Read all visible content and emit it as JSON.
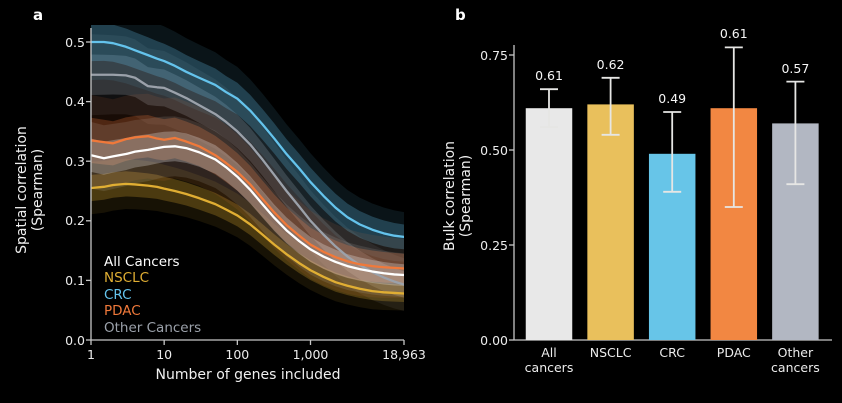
{
  "panels": {
    "a": {
      "letter": "a"
    },
    "b": {
      "letter": "b"
    }
  },
  "colors": {
    "background": "#000000",
    "axis": "#c6c6c6",
    "text": "#ececec"
  },
  "chart_data": [
    {
      "id": "spatial-correlation",
      "type": "line",
      "panel": "a",
      "xlabel": "Number of genes included",
      "ylabel": "Spatial correlation\n(Spearman)",
      "xscale": "log",
      "xlim": [
        1,
        18963
      ],
      "ylim": [
        0.0,
        0.52
      ],
      "grid": false,
      "legend_position": "lower left",
      "yticks": [
        "0.0",
        "0.1",
        "0.2",
        "0.3",
        "0.4",
        "0.5"
      ],
      "ytick_values": [
        0.0,
        0.1,
        0.2,
        0.3,
        0.4,
        0.5
      ],
      "xticks": [
        1,
        10,
        100,
        1000,
        18963
      ],
      "xtick_labels": [
        "1",
        "10",
        "100",
        "1,000",
        "18,963"
      ],
      "x": [
        1,
        1.5,
        2,
        3,
        4,
        6,
        8,
        10,
        14,
        20,
        30,
        50,
        70,
        100,
        150,
        220,
        320,
        470,
        700,
        1000,
        1500,
        2200,
        3200,
        4700,
        7000,
        10000,
        14000,
        18963
      ],
      "series": [
        {
          "key": "all-cancers",
          "name": "All Cancers",
          "color": "#ffffff",
          "band_offset": 0.028,
          "values": [
            0.31,
            0.305,
            0.308,
            0.312,
            0.316,
            0.319,
            0.322,
            0.324,
            0.325,
            0.322,
            0.315,
            0.303,
            0.29,
            0.274,
            0.252,
            0.228,
            0.205,
            0.184,
            0.166,
            0.152,
            0.14,
            0.131,
            0.124,
            0.119,
            0.115,
            0.112,
            0.11,
            0.109
          ]
        },
        {
          "key": "nsclc",
          "name": "NSCLC",
          "color": "#e0ae33",
          "band_offset": 0.022,
          "values": [
            0.255,
            0.257,
            0.26,
            0.262,
            0.261,
            0.259,
            0.257,
            0.254,
            0.25,
            0.245,
            0.238,
            0.228,
            0.219,
            0.209,
            0.194,
            0.177,
            0.16,
            0.144,
            0.129,
            0.117,
            0.106,
            0.097,
            0.091,
            0.086,
            0.082,
            0.08,
            0.079,
            0.078
          ]
        },
        {
          "key": "crc",
          "name": "CRC",
          "color": "#64c3ec",
          "band_offset": 0.032,
          "values": [
            0.5,
            0.5,
            0.498,
            0.492,
            0.486,
            0.478,
            0.472,
            0.468,
            0.46,
            0.45,
            0.44,
            0.428,
            0.416,
            0.405,
            0.385,
            0.362,
            0.338,
            0.312,
            0.288,
            0.265,
            0.242,
            0.222,
            0.206,
            0.194,
            0.185,
            0.179,
            0.175,
            0.173
          ]
        },
        {
          "key": "pdac",
          "name": "PDAC",
          "color": "#f0793a",
          "band_offset": 0.038,
          "values": [
            0.335,
            0.332,
            0.33,
            0.337,
            0.34,
            0.342,
            0.338,
            0.336,
            0.339,
            0.333,
            0.325,
            0.31,
            0.297,
            0.282,
            0.261,
            0.237,
            0.214,
            0.193,
            0.175,
            0.16,
            0.148,
            0.139,
            0.132,
            0.127,
            0.124,
            0.122,
            0.121,
            0.12
          ]
        },
        {
          "key": "other-cancers",
          "name": "Other Cancers",
          "color": "#9ba1aa",
          "band_offset": 0.034,
          "values": [
            0.445,
            0.445,
            0.445,
            0.444,
            0.44,
            0.426,
            0.424,
            0.423,
            0.415,
            0.406,
            0.394,
            0.379,
            0.366,
            0.35,
            0.328,
            0.303,
            0.277,
            0.25,
            0.224,
            0.2,
            0.177,
            0.157,
            0.14,
            0.126,
            0.114,
            0.105,
            0.098,
            0.093
          ]
        }
      ]
    },
    {
      "id": "bulk-correlation",
      "type": "bar",
      "panel": "b",
      "ylabel": "Bulk correlation\n(Spearman)",
      "ylim": [
        0.0,
        0.78
      ],
      "grid": false,
      "yticks": [
        "0.00",
        "0.25",
        "0.50",
        "0.75"
      ],
      "ytick_values": [
        0.0,
        0.25,
        0.5,
        0.75
      ],
      "categories": [
        "All\ncancers",
        "NSCLC",
        "CRC",
        "PDAC",
        "Other\ncancers"
      ],
      "values": [
        0.61,
        0.62,
        0.49,
        0.61,
        0.57
      ],
      "value_labels": [
        "0.61",
        "0.62",
        "0.49",
        "0.61",
        "0.57"
      ],
      "error_low": [
        0.56,
        0.54,
        0.39,
        0.35,
        0.41
      ],
      "error_high": [
        0.66,
        0.69,
        0.6,
        0.77,
        0.68
      ],
      "bar_colors": [
        "#e8e8e8",
        "#e9c05c",
        "#67c5e8",
        "#f28742",
        "#b2b7c2"
      ],
      "error_color": "#e6e6e4"
    }
  ]
}
